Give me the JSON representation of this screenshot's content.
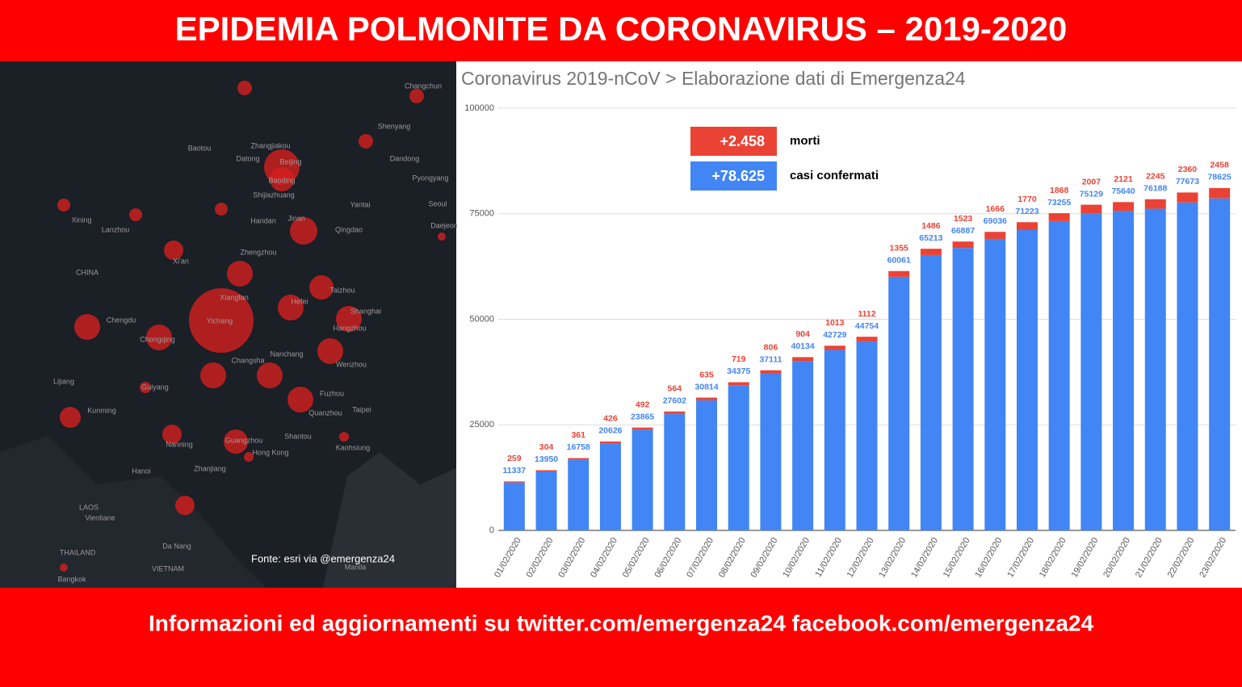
{
  "header": {
    "title": "EPIDEMIA POLMONITE DA CORONAVIRUS – 2019-2020"
  },
  "footer": {
    "text": "Informazioni ed aggiornamenti su twitter.com/emergenza24  facebook.com/emergenza24"
  },
  "map": {
    "source": "Fonte: esri via @emergenza24",
    "labels": [
      "Changchun",
      "Baotou",
      "Zhangjiakou",
      "Datong",
      "Beijing",
      "Baoding",
      "Shenyang",
      "Dandong",
      "Pyongyang",
      "Shijiazhuang",
      "Yantai",
      "Seoul",
      "Daejeon",
      "Xining",
      "Lanzhou",
      "Handan",
      "Jinan",
      "Qingdao",
      "CHINA",
      "Xi'an",
      "Zhengzhou",
      "Taizhou",
      "Xiangfan",
      "Hefei",
      "Shanghai",
      "Chengdu",
      "Yichang",
      "Hangzhou",
      "Chongqing",
      "Nanchang",
      "Changsha",
      "Wenzhou",
      "Guiyang",
      "Lijiang",
      "Fuzhou",
      "Taipei",
      "Kunming",
      "Quanzhou",
      "Nanning",
      "Shantou",
      "Guangzhou",
      "Kaohsiung",
      "Hong Kong",
      "Hanoi",
      "Zhanjiang",
      "LAOS",
      "Vientiane",
      "THAILAND",
      "Bangkok",
      "Da Nang",
      "VIETNAM",
      "Manila"
    ]
  },
  "chart_data": {
    "type": "bar",
    "stacked": true,
    "title": "Coronavirus 2019-nCoV > Elaborazione dati di Emergenza24",
    "categories": [
      "01/02/2020",
      "02/02/2020",
      "03/02/2020",
      "04/02/2020",
      "05/02/2020",
      "06/02/2020",
      "07/02/2020",
      "08/02/2020",
      "09/02/2020",
      "10/02/2020",
      "11/02/2020",
      "12/02/2020",
      "13/02/2020",
      "14/02/2020",
      "15/02/2020",
      "16/02/2020",
      "17/02/2020",
      "18/02/2020",
      "19/02/2020",
      "20/02/2020",
      "21/02/2020",
      "22/02/2020",
      "23/02/2020"
    ],
    "series": [
      {
        "name": "casi confermati",
        "legend_value": "+78.625",
        "color": "#4285f4",
        "values": [
          11337,
          13950,
          16758,
          20626,
          23865,
          27602,
          30814,
          34375,
          37111,
          40134,
          42729,
          44754,
          60061,
          65213,
          66887,
          69036,
          71223,
          73255,
          75129,
          75640,
          76188,
          77673,
          78625
        ]
      },
      {
        "name": "morti",
        "legend_value": "+2.458",
        "color": "#ea4335",
        "values": [
          259,
          304,
          361,
          426,
          492,
          564,
          635,
          719,
          806,
          904,
          1013,
          1112,
          1355,
          1486,
          1523,
          1666,
          1770,
          1868,
          2007,
          2121,
          2245,
          2360,
          2458
        ]
      }
    ],
    "ylim": [
      0,
      100000
    ],
    "yticks": [
      0,
      25000,
      50000,
      75000,
      100000
    ],
    "grid": true
  }
}
